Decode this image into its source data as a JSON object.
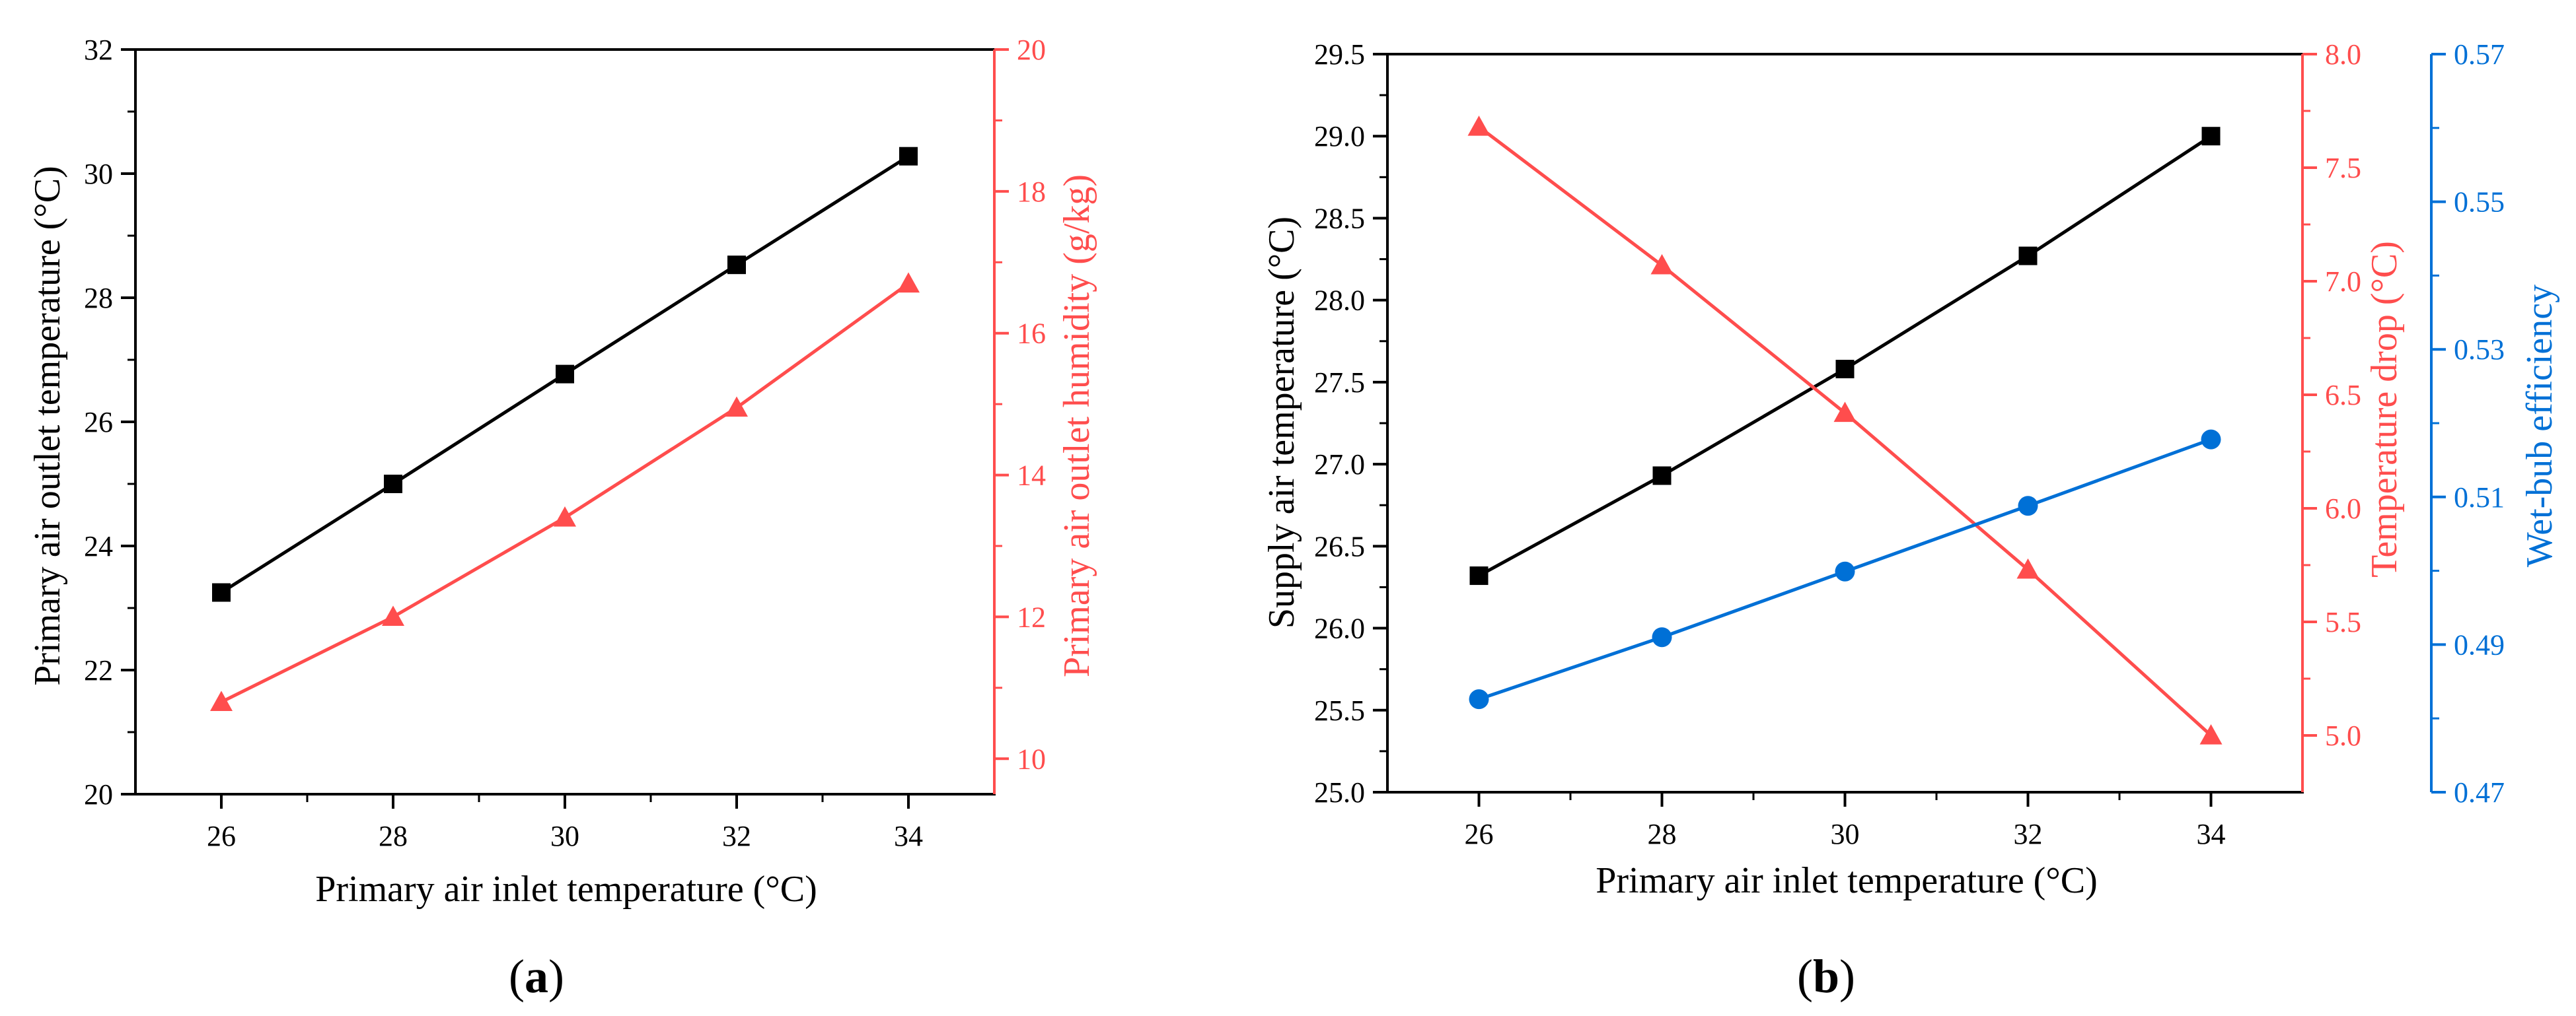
{
  "colors": {
    "black": "#000000",
    "red": "#ff4d4d",
    "blue": "#0070d6"
  },
  "chart_data": [
    {
      "type": "line",
      "panel_label": "(a)",
      "panel_letter": "a",
      "xlabel": "Primary air inlet temperature (°C)",
      "ylabel": "Primary air outlet temperature (°C)",
      "y2label": "Primary air outlet humidity (g/kg)",
      "xlim": [
        25,
        35
      ],
      "ylim": [
        20,
        32
      ],
      "y2lim": [
        9.5,
        20
      ],
      "x_ticks": [
        26,
        28,
        30,
        32,
        34
      ],
      "y_ticks": [
        20,
        22,
        24,
        26,
        28,
        30,
        32
      ],
      "y2_ticks": [
        10,
        12,
        14,
        16,
        18,
        20
      ],
      "x": [
        26,
        28,
        30,
        32,
        34
      ],
      "series": [
        {
          "name": "Primary air outlet temperature",
          "axis": "left",
          "marker": "square",
          "color": "#000000",
          "values": [
            23.25,
            25.0,
            26.77,
            28.53,
            30.28
          ]
        },
        {
          "name": "Primary air outlet humidity",
          "axis": "right",
          "marker": "triangle",
          "color": "#ff4d4d",
          "values": [
            10.8,
            12.0,
            13.4,
            14.95,
            16.7
          ]
        }
      ]
    },
    {
      "type": "line",
      "panel_label": "(b)",
      "panel_letter": "b",
      "xlabel": "Primary air inlet temperature (°C)",
      "ylabel": "Supply air temperature (°C)",
      "y2label": "Temperature drop (°C)",
      "y3label": "Wet-bub efficiency",
      "xlim": [
        25,
        35
      ],
      "ylim": [
        25.0,
        29.5
      ],
      "y2lim": [
        4.75,
        8.0
      ],
      "y3lim": [
        0.47,
        0.57
      ],
      "x_ticks": [
        26,
        28,
        30,
        32,
        34
      ],
      "y_ticks": [
        "25.0",
        "25.5",
        "26.0",
        "26.5",
        "27.0",
        "27.5",
        "28.0",
        "28.5",
        "29.0",
        "29.5"
      ],
      "y2_ticks": [
        "5.0",
        "5.5",
        "6.0",
        "6.5",
        "7.0",
        "7.5",
        "8.0"
      ],
      "y3_ticks": [
        "0.47",
        "0.49",
        "0.51",
        "0.53",
        "0.55",
        "0.57"
      ],
      "x": [
        26,
        28,
        30,
        32,
        34
      ],
      "series": [
        {
          "name": "Supply air temperature",
          "axis": "left",
          "marker": "square",
          "color": "#000000",
          "values": [
            26.32,
            26.93,
            27.58,
            28.27,
            29.0
          ]
        },
        {
          "name": "Temperature drop",
          "axis": "right",
          "marker": "triangle",
          "color": "#ff4d4d",
          "values": [
            7.68,
            7.07,
            6.42,
            5.73,
            5.0
          ]
        },
        {
          "name": "Wet-bub efficiency",
          "axis": "right2",
          "marker": "circle",
          "color": "#0070d6",
          "values": [
            0.4826,
            0.491,
            0.4999,
            0.5088,
            0.5178
          ]
        }
      ]
    }
  ]
}
